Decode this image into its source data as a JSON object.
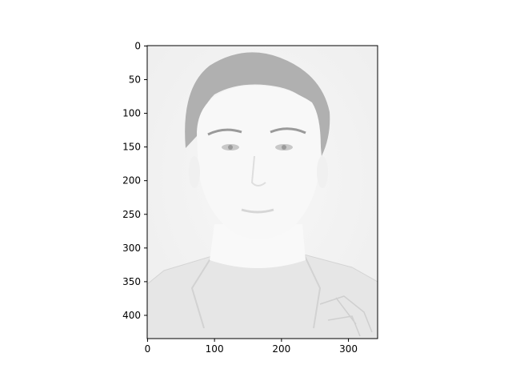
{
  "chart_data": {
    "type": "image",
    "title": "",
    "xlabel": "",
    "ylabel": "",
    "xlim": [
      -0.5,
      343.5
    ],
    "ylim": [
      434.5,
      -0.5
    ],
    "y_inverted": true,
    "x_ticks": [
      0,
      100,
      200,
      300
    ],
    "x_tick_labels": [
      "0",
      "100",
      "200",
      "300"
    ],
    "y_ticks": [
      0,
      50,
      100,
      150,
      200,
      250,
      300,
      350,
      400
    ],
    "y_tick_labels": [
      "0",
      "50",
      "100",
      "150",
      "200",
      "250",
      "300",
      "350",
      "400"
    ],
    "grid": false,
    "legend": "none",
    "image_content": "washed-out grayscale portrait photo of a young man",
    "colors": {
      "background": "#f2f2f2",
      "hair": "#a9a9a9",
      "skin": "#fafafa",
      "shirt": "#e8e8e8",
      "frame": "#000000"
    }
  }
}
